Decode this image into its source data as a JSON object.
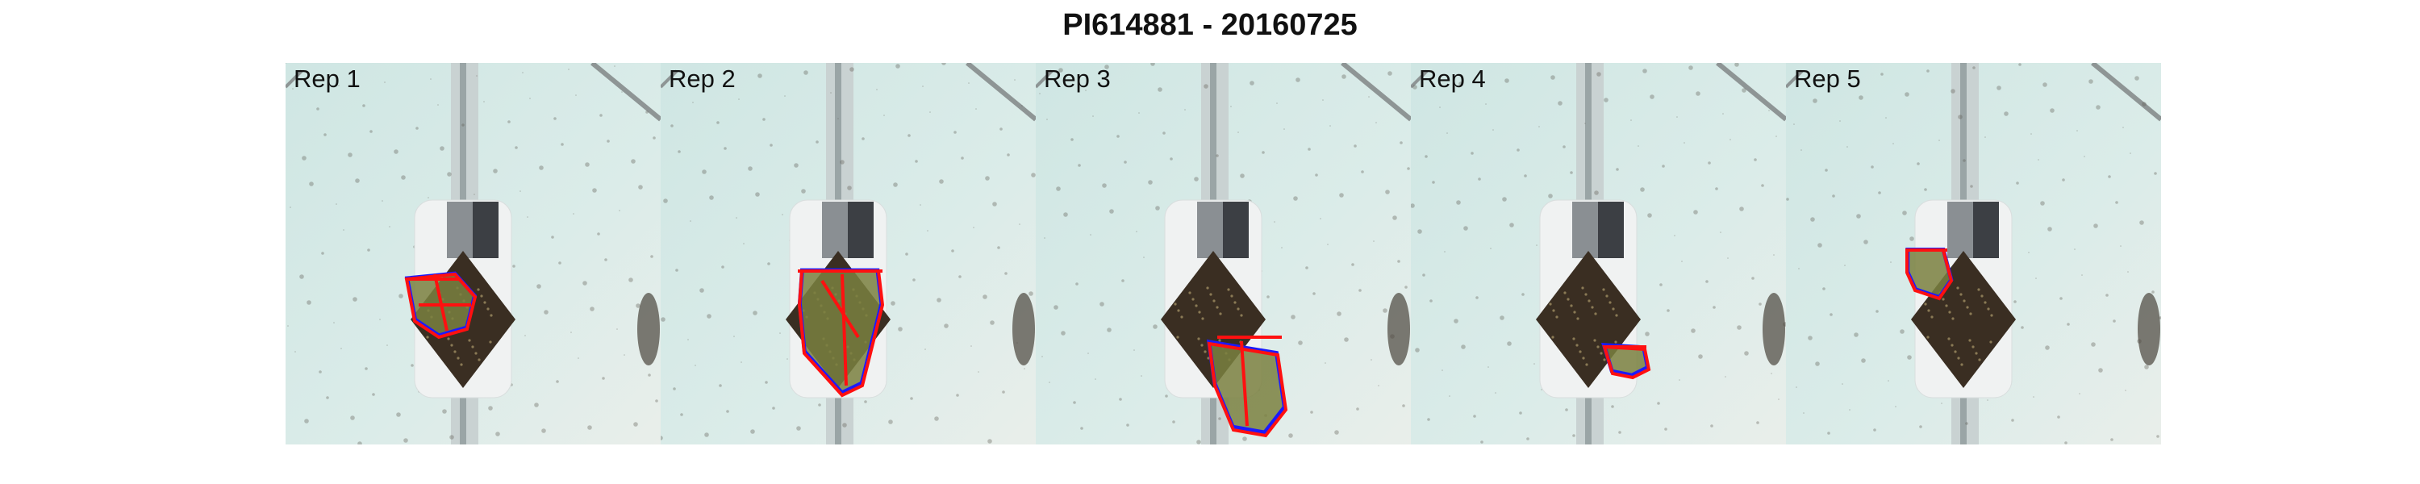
{
  "figure": {
    "title": "PI614881 - 20160725"
  },
  "panels": [
    {
      "label": "Rep 1"
    },
    {
      "label": "Rep 2"
    },
    {
      "label": "Rep 3"
    },
    {
      "label": "Rep 4"
    },
    {
      "label": "Rep 5"
    }
  ],
  "colors": {
    "background_tint": "#dbece9",
    "outline": "#ff1010",
    "inner_outline": "#1a1aff",
    "leaf_fill": "#7a8040",
    "soil": "#3a2e22",
    "pot_white": "#f0f2f2"
  }
}
